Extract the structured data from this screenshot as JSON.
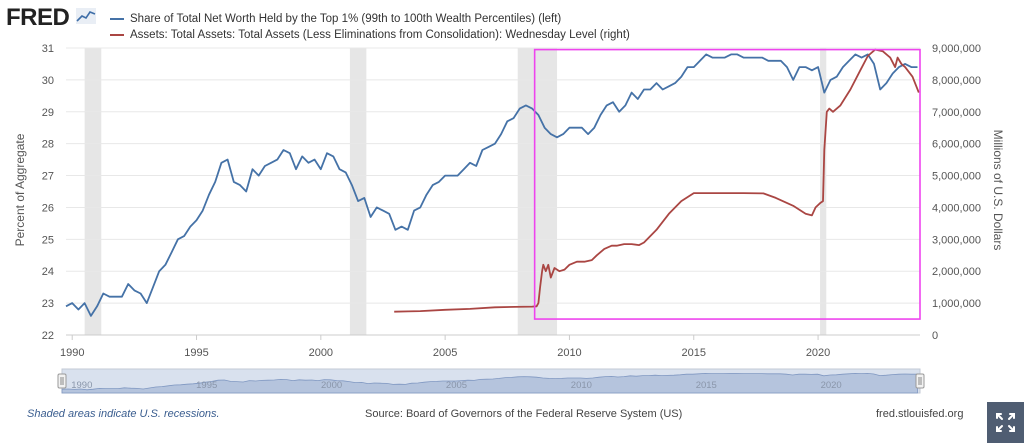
{
  "brand": {
    "logo_text": "FRED",
    "logo_icon": "line-chart-icon"
  },
  "legend": [
    {
      "label": "Share of Total Net Worth Held by the Top 1% (99th to 100th Wealth Percentiles) (left)",
      "color": "#4572a7"
    },
    {
      "label": "Assets: Total Assets: Total Assets (Less Eliminations from Consolidation): Wednesday Level (right)",
      "color": "#aa4643"
    }
  ],
  "chart_data": {
    "type": "line",
    "ylabel_left": "Percent of Aggregate",
    "ylabel_right": "Millions of U.S. Dollars",
    "ylim_left": [
      22,
      31
    ],
    "ylim_right": [
      0,
      9000000
    ],
    "yticks_left": [
      "22",
      "23",
      "24",
      "25",
      "26",
      "27",
      "28",
      "29",
      "30",
      "31"
    ],
    "yticks_right": [
      "0",
      "1,000,000",
      "2,000,000",
      "3,000,000",
      "4,000,000",
      "5,000,000",
      "6,000,000",
      "7,000,000",
      "8,000,000",
      "9,000,000"
    ],
    "xlim": [
      1989.75,
      2024.1
    ],
    "xticks": [
      "1990",
      "1995",
      "2000",
      "2005",
      "2010",
      "2015",
      "2020"
    ],
    "recessions": [
      [
        1990.5,
        1991.17
      ],
      [
        2001.17,
        2001.83
      ],
      [
        2007.92,
        2009.5
      ],
      [
        2020.08,
        2020.33
      ]
    ],
    "highlight_box": {
      "x": [
        2008.6,
        2024.1
      ],
      "y_right": [
        500000,
        8950000
      ],
      "color": "#ee44ee"
    },
    "series": [
      {
        "name": "Share of Total Net Worth Held by the Top 1% (99th to 100th Wealth Percentiles) (left)",
        "color": "#4572a7",
        "axis": "left",
        "points": [
          [
            1989.75,
            22.9
          ],
          [
            1990.0,
            23.0
          ],
          [
            1990.25,
            22.8
          ],
          [
            1990.5,
            23.0
          ],
          [
            1990.75,
            22.6
          ],
          [
            1991.0,
            22.9
          ],
          [
            1991.25,
            23.3
          ],
          [
            1991.5,
            23.2
          ],
          [
            1991.75,
            23.2
          ],
          [
            1992.0,
            23.2
          ],
          [
            1992.25,
            23.6
          ],
          [
            1992.5,
            23.4
          ],
          [
            1992.75,
            23.3
          ],
          [
            1993.0,
            23.0
          ],
          [
            1993.25,
            23.5
          ],
          [
            1993.5,
            24.0
          ],
          [
            1993.75,
            24.2
          ],
          [
            1994.0,
            24.6
          ],
          [
            1994.25,
            25.0
          ],
          [
            1994.5,
            25.1
          ],
          [
            1994.75,
            25.4
          ],
          [
            1995.0,
            25.6
          ],
          [
            1995.25,
            25.9
          ],
          [
            1995.5,
            26.4
          ],
          [
            1995.75,
            26.8
          ],
          [
            1996.0,
            27.4
          ],
          [
            1996.25,
            27.5
          ],
          [
            1996.5,
            26.8
          ],
          [
            1996.75,
            26.7
          ],
          [
            1997.0,
            26.5
          ],
          [
            1997.25,
            27.2
          ],
          [
            1997.5,
            27.0
          ],
          [
            1997.75,
            27.3
          ],
          [
            1998.0,
            27.4
          ],
          [
            1998.25,
            27.5
          ],
          [
            1998.5,
            27.8
          ],
          [
            1998.75,
            27.7
          ],
          [
            1999.0,
            27.2
          ],
          [
            1999.25,
            27.6
          ],
          [
            1999.5,
            27.4
          ],
          [
            1999.75,
            27.5
          ],
          [
            2000.0,
            27.2
          ],
          [
            2000.25,
            27.7
          ],
          [
            2000.5,
            27.6
          ],
          [
            2000.75,
            27.2
          ],
          [
            2001.0,
            27.1
          ],
          [
            2001.25,
            26.7
          ],
          [
            2001.5,
            26.2
          ],
          [
            2001.75,
            26.3
          ],
          [
            2002.0,
            25.7
          ],
          [
            2002.25,
            26.0
          ],
          [
            2002.5,
            25.9
          ],
          [
            2002.75,
            25.8
          ],
          [
            2003.0,
            25.3
          ],
          [
            2003.25,
            25.4
          ],
          [
            2003.5,
            25.3
          ],
          [
            2003.75,
            25.9
          ],
          [
            2004.0,
            26.0
          ],
          [
            2004.25,
            26.4
          ],
          [
            2004.5,
            26.7
          ],
          [
            2004.75,
            26.8
          ],
          [
            2005.0,
            27.0
          ],
          [
            2005.25,
            27.0
          ],
          [
            2005.5,
            27.0
          ],
          [
            2005.75,
            27.2
          ],
          [
            2006.0,
            27.4
          ],
          [
            2006.25,
            27.3
          ],
          [
            2006.5,
            27.8
          ],
          [
            2006.75,
            27.9
          ],
          [
            2007.0,
            28.0
          ],
          [
            2007.25,
            28.3
          ],
          [
            2007.5,
            28.7
          ],
          [
            2007.75,
            28.8
          ],
          [
            2008.0,
            29.1
          ],
          [
            2008.25,
            29.2
          ],
          [
            2008.5,
            29.1
          ],
          [
            2008.75,
            28.9
          ],
          [
            2009.0,
            28.5
          ],
          [
            2009.25,
            28.3
          ],
          [
            2009.5,
            28.2
          ],
          [
            2009.75,
            28.3
          ],
          [
            2010.0,
            28.5
          ],
          [
            2010.25,
            28.5
          ],
          [
            2010.5,
            28.5
          ],
          [
            2010.75,
            28.3
          ],
          [
            2011.0,
            28.5
          ],
          [
            2011.25,
            28.9
          ],
          [
            2011.5,
            29.2
          ],
          [
            2011.75,
            29.3
          ],
          [
            2012.0,
            29.0
          ],
          [
            2012.25,
            29.2
          ],
          [
            2012.5,
            29.6
          ],
          [
            2012.75,
            29.4
          ],
          [
            2013.0,
            29.7
          ],
          [
            2013.25,
            29.7
          ],
          [
            2013.5,
            29.9
          ],
          [
            2013.75,
            29.7
          ],
          [
            2014.0,
            29.8
          ],
          [
            2014.25,
            29.9
          ],
          [
            2014.5,
            30.1
          ],
          [
            2014.75,
            30.4
          ],
          [
            2015.0,
            30.4
          ],
          [
            2015.25,
            30.6
          ],
          [
            2015.5,
            30.8
          ],
          [
            2015.75,
            30.7
          ],
          [
            2016.0,
            30.7
          ],
          [
            2016.25,
            30.7
          ],
          [
            2016.5,
            30.8
          ],
          [
            2016.75,
            30.8
          ],
          [
            2017.0,
            30.7
          ],
          [
            2017.25,
            30.7
          ],
          [
            2017.5,
            30.7
          ],
          [
            2017.75,
            30.7
          ],
          [
            2018.0,
            30.6
          ],
          [
            2018.25,
            30.6
          ],
          [
            2018.5,
            30.6
          ],
          [
            2018.75,
            30.4
          ],
          [
            2019.0,
            30.0
          ],
          [
            2019.25,
            30.4
          ],
          [
            2019.5,
            30.4
          ],
          [
            2019.75,
            30.3
          ],
          [
            2020.0,
            30.4
          ],
          [
            2020.25,
            29.6
          ],
          [
            2020.5,
            30.0
          ],
          [
            2020.75,
            30.1
          ],
          [
            2021.0,
            30.4
          ],
          [
            2021.25,
            30.6
          ],
          [
            2021.5,
            30.8
          ],
          [
            2021.75,
            30.7
          ],
          [
            2022.0,
            30.8
          ],
          [
            2022.25,
            30.5
          ],
          [
            2022.5,
            29.7
          ],
          [
            2022.75,
            29.9
          ],
          [
            2023.0,
            30.2
          ],
          [
            2023.25,
            30.4
          ],
          [
            2023.5,
            30.5
          ],
          [
            2023.75,
            30.4
          ],
          [
            2024.0,
            30.4
          ]
        ]
      },
      {
        "name": "Assets: Total Assets: Total Assets (Less Eliminations from Consolidation): Wednesday Level (right)",
        "color": "#aa4643",
        "axis": "right",
        "points": [
          [
            2002.95,
            730000
          ],
          [
            2003.5,
            740000
          ],
          [
            2004.0,
            750000
          ],
          [
            2005.0,
            790000
          ],
          [
            2006.0,
            820000
          ],
          [
            2007.0,
            870000
          ],
          [
            2007.8,
            880000
          ],
          [
            2008.5,
            890000
          ],
          [
            2008.68,
            900000
          ],
          [
            2008.75,
            1000000
          ],
          [
            2008.82,
            1500000
          ],
          [
            2008.9,
            2000000
          ],
          [
            2008.95,
            2200000
          ],
          [
            2009.05,
            2000000
          ],
          [
            2009.15,
            2200000
          ],
          [
            2009.25,
            1800000
          ],
          [
            2009.4,
            2100000
          ],
          [
            2009.6,
            2000000
          ],
          [
            2009.8,
            2050000
          ],
          [
            2010.0,
            2200000
          ],
          [
            2010.3,
            2300000
          ],
          [
            2010.6,
            2300000
          ],
          [
            2010.9,
            2350000
          ],
          [
            2011.1,
            2500000
          ],
          [
            2011.4,
            2700000
          ],
          [
            2011.7,
            2800000
          ],
          [
            2011.9,
            2800000
          ],
          [
            2012.2,
            2850000
          ],
          [
            2012.5,
            2850000
          ],
          [
            2012.8,
            2820000
          ],
          [
            2013.0,
            2900000
          ],
          [
            2013.5,
            3300000
          ],
          [
            2014.0,
            3800000
          ],
          [
            2014.5,
            4200000
          ],
          [
            2015.0,
            4450000
          ],
          [
            2016.0,
            4450000
          ],
          [
            2017.0,
            4450000
          ],
          [
            2017.8,
            4440000
          ],
          [
            2018.3,
            4300000
          ],
          [
            2019.0,
            4050000
          ],
          [
            2019.5,
            3800000
          ],
          [
            2019.75,
            3750000
          ],
          [
            2019.9,
            4000000
          ],
          [
            2020.1,
            4150000
          ],
          [
            2020.2,
            4200000
          ],
          [
            2020.25,
            5800000
          ],
          [
            2020.35,
            7000000
          ],
          [
            2020.45,
            7100000
          ],
          [
            2020.6,
            7000000
          ],
          [
            2020.9,
            7200000
          ],
          [
            2021.3,
            7700000
          ],
          [
            2021.7,
            8300000
          ],
          [
            2022.0,
            8750000
          ],
          [
            2022.3,
            8950000
          ],
          [
            2022.6,
            8900000
          ],
          [
            2022.9,
            8700000
          ],
          [
            2023.1,
            8400000
          ],
          [
            2023.2,
            8700000
          ],
          [
            2023.35,
            8500000
          ],
          [
            2023.5,
            8400000
          ],
          [
            2023.8,
            8100000
          ],
          [
            2024.05,
            7600000
          ]
        ]
      }
    ]
  },
  "navigator": {
    "labels": [
      "1990",
      "1995",
      "2000",
      "2005",
      "2010",
      "2015",
      "2020"
    ]
  },
  "footer": {
    "recession_note": "Shaded areas indicate U.S. recessions.",
    "source": "Source: Board of Governors of the Federal Reserve System (US)",
    "site": "fred.stlouisfed.org"
  }
}
